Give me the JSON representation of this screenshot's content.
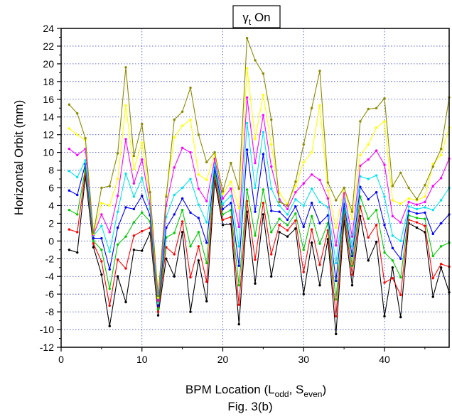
{
  "chart_data": {
    "type": "line",
    "title_main": "γ",
    "title_sub": "t",
    "title_rest": " On",
    "xlabel_main": "BPM Location (L",
    "xlabel_sub1": "odd",
    "xlabel_mid": ", S",
    "xlabel_sub2": "even",
    "xlabel_end": ")",
    "ylabel": "Horizontal Orbit (mm)",
    "caption": "Fig. 3(b)",
    "xlim": [
      0,
      48
    ],
    "ylim": [
      -12,
      24
    ],
    "xticks": [
      0,
      10,
      20,
      30,
      40
    ],
    "yticks": [
      -12,
      -10,
      -8,
      -6,
      -4,
      -2,
      0,
      2,
      4,
      6,
      8,
      10,
      12,
      14,
      16,
      18,
      20,
      22,
      24
    ],
    "grid": true,
    "x": [
      1,
      2,
      3,
      4,
      5,
      6,
      7,
      8,
      9,
      10,
      11,
      12,
      13,
      14,
      15,
      16,
      17,
      18,
      19,
      20,
      21,
      22,
      23,
      24,
      25,
      26,
      27,
      28,
      29,
      30,
      31,
      32,
      33,
      34,
      35,
      36,
      37,
      38,
      39,
      40,
      41,
      42,
      43,
      44,
      45,
      46,
      47,
      48
    ],
    "series": [
      {
        "color": "#000000",
        "values": [
          -1.0,
          -1.3,
          7.3,
          -0.7,
          -3.8,
          -9.6,
          -4.0,
          -6.9,
          -1.0,
          -1.1,
          0.9,
          -8.4,
          -2.0,
          -4.0,
          1.0,
          -8.0,
          -2.2,
          -6.8,
          6.8,
          1.8,
          1.9,
          -9.4,
          3.3,
          -4.8,
          3.0,
          -4.0,
          1.0,
          0.5,
          1.4,
          -6.0,
          -0.2,
          -5.0,
          0.2,
          -10.5,
          2.3,
          -5.0,
          2.8,
          -2.2,
          -0.1,
          -8.5,
          -3.0,
          -8.6,
          2.0,
          1.5,
          1.0,
          -6.3,
          -3.0,
          -5.8
        ]
      },
      {
        "color": "#ff0000",
        "values": [
          1.3,
          1.0,
          7.8,
          -0.3,
          -2.3,
          -7.3,
          -2.1,
          -3.1,
          0.6,
          1.1,
          1.5,
          -8.0,
          -0.7,
          -1.5,
          2.2,
          -4.1,
          -0.6,
          -4.6,
          7.3,
          2.4,
          2.7,
          -7.2,
          4.5,
          -2.1,
          4.3,
          -1.5,
          1.8,
          1.2,
          2.3,
          -3.5,
          1.3,
          -2.7,
          1.2,
          -8.5,
          3.0,
          -3.8,
          3.9,
          0.4,
          1.8,
          -4.7,
          -4.2,
          -6.1,
          2.4,
          2.1,
          1.7,
          -4.2,
          -2.6,
          -2.9
        ]
      },
      {
        "color": "#00cc00",
        "values": [
          3.5,
          3.0,
          8.2,
          0.0,
          -1.0,
          -5.4,
          -0.4,
          0.5,
          2.1,
          3.2,
          2.2,
          -7.7,
          0.4,
          0.9,
          3.5,
          -0.6,
          1.0,
          -2.5,
          7.8,
          3.0,
          3.5,
          -5.0,
          5.8,
          0.6,
          5.8,
          1.0,
          2.5,
          1.8,
          3.1,
          -1.0,
          2.8,
          -0.3,
          2.0,
          -6.6,
          3.6,
          -2.8,
          5.0,
          2.5,
          3.5,
          -1.3,
          -2.2,
          -4.1,
          2.9,
          2.6,
          2.5,
          -1.7,
          -0.6,
          -0.2
        ]
      },
      {
        "color": "#0000ff",
        "values": [
          5.7,
          5.2,
          8.7,
          0.3,
          0.3,
          -3.2,
          1.5,
          3.8,
          3.6,
          5.1,
          2.9,
          -7.3,
          1.5,
          3.0,
          4.8,
          3.2,
          2.6,
          -0.2,
          8.3,
          3.6,
          4.3,
          -2.8,
          10.3,
          3.3,
          9.8,
          3.4,
          3.3,
          2.4,
          3.9,
          1.6,
          4.3,
          2.0,
          2.9,
          -4.5,
          4.2,
          -1.7,
          6.1,
          4.7,
          5.5,
          1.8,
          -0.8,
          -2.0,
          3.4,
          3.1,
          3.2,
          0.8,
          2.0,
          3.0
        ]
      },
      {
        "color": "#00e5ee",
        "values": [
          7.9,
          7.2,
          9.1,
          0.6,
          1.7,
          -1.2,
          3.3,
          7.6,
          5.0,
          7.1,
          3.6,
          -7.0,
          2.7,
          5.2,
          6.0,
          7.0,
          4.1,
          2.1,
          8.8,
          4.2,
          5.1,
          -0.6,
          13.3,
          6.0,
          12.3,
          5.9,
          4.0,
          3.0,
          4.7,
          4.0,
          5.9,
          4.4,
          3.8,
          -2.5,
          4.8,
          -0.6,
          7.3,
          7.0,
          7.4,
          5.0,
          0.6,
          0.0,
          3.9,
          3.6,
          3.8,
          3.5,
          4.6,
          6.0
        ]
      },
      {
        "color": "#ff00ff",
        "values": [
          10.4,
          9.7,
          10.4,
          0.7,
          3.0,
          1.0,
          5.1,
          11.5,
          6.5,
          9.2,
          4.2,
          -6.7,
          4.0,
          8.3,
          10.5,
          10.0,
          5.9,
          4.5,
          9.3,
          4.8,
          5.9,
          1.6,
          16.2,
          8.8,
          14.2,
          8.4,
          4.7,
          3.6,
          5.5,
          6.5,
          7.5,
          6.9,
          4.8,
          -0.5,
          5.4,
          0.5,
          8.5,
          9.2,
          10.2,
          8.6,
          2.8,
          2.1,
          4.4,
          4.1,
          4.4,
          6.2,
          7.1,
          9.3
        ]
      },
      {
        "color": "#ffff00",
        "values": [
          12.7,
          12.0,
          11.4,
          0.8,
          4.3,
          4.0,
          7.0,
          15.3,
          8.1,
          11.1,
          4.9,
          -6.4,
          5.2,
          11.7,
          13.0,
          13.7,
          7.5,
          6.9,
          9.8,
          5.3,
          6.7,
          3.7,
          19.5,
          11.5,
          16.5,
          10.9,
          5.4,
          4.2,
          6.2,
          8.9,
          10.0,
          15.3,
          5.7,
          1.5,
          6.0,
          2.5,
          9.7,
          10.9,
          12.8,
          13.5,
          4.6,
          4.2,
          4.8,
          4.6,
          5.0,
          8.7,
          9.7,
          12.8
        ]
      },
      {
        "color": "#8b8b00",
        "values": [
          15.4,
          14.4,
          11.6,
          0.9,
          6.0,
          6.2,
          9.9,
          19.6,
          9.6,
          13.2,
          5.5,
          -6.2,
          5.0,
          13.7,
          14.6,
          17.3,
          12.0,
          8.9,
          10.0,
          5.6,
          8.8,
          5.9,
          22.9,
          20.4,
          18.9,
          13.7,
          4.4,
          4.0,
          6.7,
          10.9,
          15.0,
          19.2,
          6.6,
          4.6,
          6.0,
          3.3,
          13.5,
          14.9,
          15.0,
          16.1,
          6.2,
          7.7,
          6.0,
          4.7,
          6.3,
          8.4,
          10.4,
          16.2
        ]
      }
    ]
  }
}
